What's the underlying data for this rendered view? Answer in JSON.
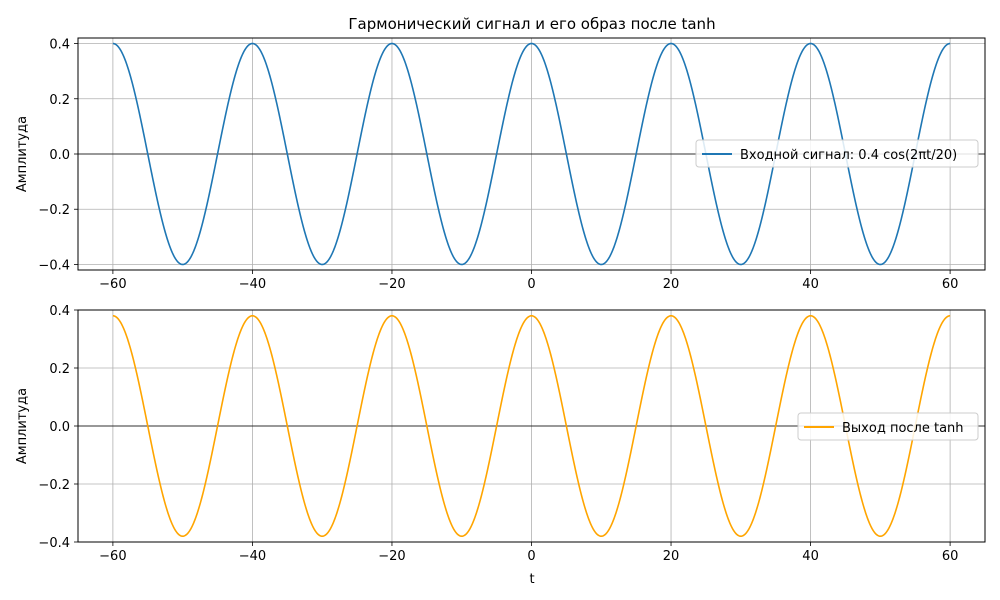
{
  "figure": {
    "title": "Гармонический сигнал и его образ после tanh"
  },
  "chart_data": [
    {
      "type": "line",
      "title": "Гармонический сигнал и его образ после tanh",
      "xlabel": "",
      "ylabel": "Амплитуда",
      "xlim": [
        -65,
        65
      ],
      "ylim": [
        -0.42,
        0.42
      ],
      "xticks": [
        -60,
        -40,
        -20,
        0,
        20,
        40,
        60
      ],
      "xtick_labels": [
        "−60",
        "−40",
        "−20",
        "0",
        "20",
        "40",
        "60"
      ],
      "yticks": [
        -0.4,
        -0.2,
        0.0,
        0.2,
        0.4
      ],
      "ytick_labels": [
        "−0.4",
        "−0.2",
        "0.0",
        "0.2",
        "0.4"
      ],
      "grid": true,
      "legend_position": "center-right",
      "series": [
        {
          "name": "Входной сигнал: 0.4 cos(2πt/20)",
          "color": "#1f77b4",
          "x": [
            -60,
            -57.5,
            -55,
            -52.5,
            -50,
            -47.5,
            -45,
            -42.5,
            -40,
            -37.5,
            -35,
            -32.5,
            -30,
            -27.5,
            -25,
            -22.5,
            -20,
            -17.5,
            -15,
            -12.5,
            -10,
            -7.5,
            -5,
            -2.5,
            0,
            2.5,
            5,
            7.5,
            10,
            12.5,
            15,
            17.5,
            20,
            22.5,
            25,
            27.5,
            30,
            32.5,
            35,
            37.5,
            40,
            42.5,
            45,
            47.5,
            50,
            52.5,
            55,
            57.5,
            60
          ],
          "y": [
            0.4,
            0.283,
            0,
            -0.283,
            -0.4,
            -0.283,
            0,
            0.283,
            0.4,
            0.283,
            0,
            -0.283,
            -0.4,
            -0.283,
            0,
            0.283,
            0.4,
            0.283,
            0,
            -0.283,
            -0.4,
            -0.283,
            0,
            0.283,
            0.4,
            0.283,
            0,
            -0.283,
            -0.4,
            -0.283,
            0,
            0.283,
            0.4,
            0.283,
            0,
            -0.283,
            -0.4,
            -0.283,
            0,
            0.283,
            0.4,
            0.283,
            0,
            -0.283,
            -0.4,
            -0.283,
            0,
            0.283,
            0.4
          ]
        }
      ]
    },
    {
      "type": "line",
      "title": "",
      "xlabel": "t",
      "ylabel": "Амплитуда",
      "xlim": [
        -65,
        65
      ],
      "ylim": [
        -0.4,
        0.4
      ],
      "xticks": [
        -60,
        -40,
        -20,
        0,
        20,
        40,
        60
      ],
      "xtick_labels": [
        "−60",
        "−40",
        "−20",
        "0",
        "20",
        "40",
        "60"
      ],
      "yticks": [
        -0.4,
        -0.2,
        0.0,
        0.2,
        0.4
      ],
      "ytick_labels": [
        "−0.4",
        "−0.2",
        "0.0",
        "0.2",
        "0.4"
      ],
      "grid": true,
      "legend_position": "center-right",
      "series": [
        {
          "name": "Выход после tanh",
          "color": "#ffa500",
          "x": [
            -60,
            -57.5,
            -55,
            -52.5,
            -50,
            -47.5,
            -45,
            -42.5,
            -40,
            -37.5,
            -35,
            -32.5,
            -30,
            -27.5,
            -25,
            -22.5,
            -20,
            -17.5,
            -15,
            -12.5,
            -10,
            -7.5,
            -5,
            -2.5,
            0,
            2.5,
            5,
            7.5,
            10,
            12.5,
            15,
            17.5,
            20,
            22.5,
            25,
            27.5,
            30,
            32.5,
            35,
            37.5,
            40,
            42.5,
            45,
            47.5,
            50,
            52.5,
            55,
            57.5,
            60
          ],
          "y": [
            0.38,
            0.275,
            0,
            -0.275,
            -0.38,
            -0.275,
            0,
            0.275,
            0.38,
            0.275,
            0,
            -0.275,
            -0.38,
            -0.275,
            0,
            0.275,
            0.38,
            0.275,
            0,
            -0.275,
            -0.38,
            -0.275,
            0,
            0.275,
            0.38,
            0.275,
            0,
            -0.275,
            -0.38,
            -0.275,
            0,
            0.275,
            0.38,
            0.275,
            0,
            -0.275,
            -0.38,
            -0.275,
            0,
            0.275,
            0.38,
            0.275,
            0,
            -0.275,
            -0.38,
            -0.275,
            0,
            0.275,
            0.38
          ]
        }
      ]
    }
  ]
}
